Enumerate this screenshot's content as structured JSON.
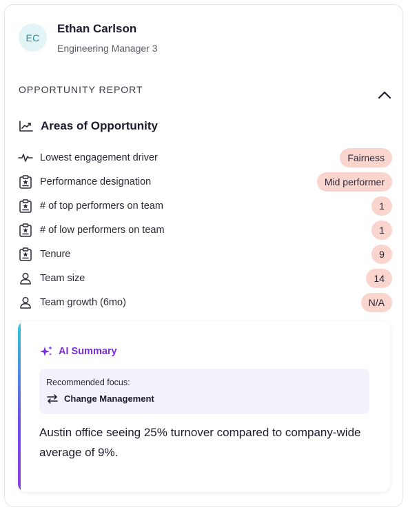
{
  "profile": {
    "initials": "EC",
    "name": "Ethan Carlson",
    "role": "Engineering Manager 3"
  },
  "report": {
    "label": "OPPORTUNITY REPORT",
    "collapse_icon": "chevron-up-icon"
  },
  "areas": {
    "title": "Areas of Opportunity",
    "icon": "trend-chart-icon",
    "rows": [
      {
        "icon": "pulse-icon",
        "label": "Lowest engagement driver",
        "value": "Fairness"
      },
      {
        "icon": "clipboard-star-icon",
        "label": "Performance designation",
        "value": "Mid performer"
      },
      {
        "icon": "clipboard-star-icon",
        "label": "# of top performers on team",
        "value": "1"
      },
      {
        "icon": "clipboard-star-icon",
        "label": "# of low performers on team",
        "value": "1"
      },
      {
        "icon": "clipboard-star-icon",
        "label": "Tenure",
        "value": "9"
      },
      {
        "icon": "person-icon",
        "label": "Team size",
        "value": "14"
      },
      {
        "icon": "person-icon",
        "label": "Team growth (6mo)",
        "value": "N/A"
      }
    ]
  },
  "ai_summary": {
    "title": "AI Summary",
    "icon": "sparkle-icon",
    "focus_label": "Recommended focus:",
    "focus_value": "Change Management",
    "focus_icon": "swap-arrows-icon",
    "text": "Austin office seeing 25% turnover compared to company-wide average of 9%."
  },
  "colors": {
    "pill": "#f9d5cd",
    "ai_accent": "#7a2fd6",
    "avatar_bg": "#e3f4f6",
    "avatar_text": "#2b8c99"
  }
}
